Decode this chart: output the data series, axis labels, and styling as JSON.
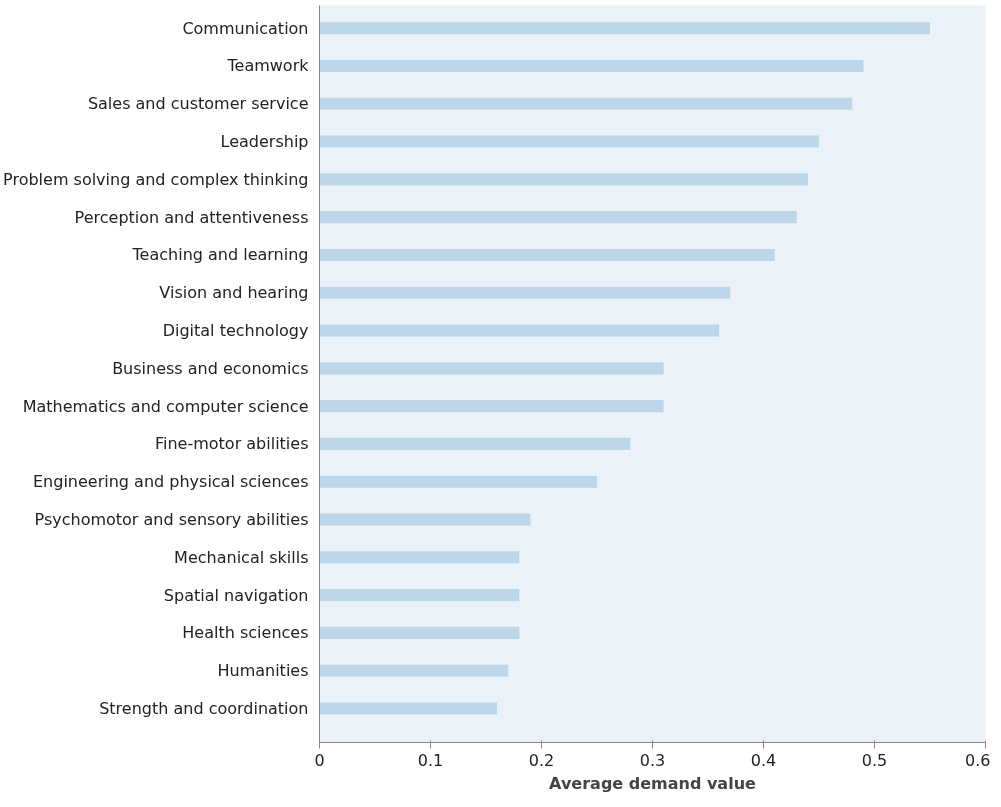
{
  "chart_data": {
    "type": "bar",
    "orientation": "horizontal",
    "xlabel": "Average demand value",
    "categories": [
      "Communication",
      "Teamwork",
      "Sales and customer service",
      "Leadership",
      "Problem solving and complex thinking",
      "Perception and attentiveness",
      "Teaching and learning",
      "Vision and hearing",
      "Digital technology",
      "Business and economics",
      "Mathematics and computer science",
      "Fine-motor abilities",
      "Engineering and physical sciences",
      "Psychomotor and sensory abilities",
      "Mechanical skills",
      "Spatial navigation",
      "Health sciences",
      "Humanities",
      "Strength and coordination"
    ],
    "values": [
      0.55,
      0.49,
      0.48,
      0.45,
      0.44,
      0.43,
      0.41,
      0.37,
      0.36,
      0.31,
      0.31,
      0.28,
      0.25,
      0.19,
      0.18,
      0.18,
      0.18,
      0.17,
      0.16
    ],
    "color": "#bcd6ea",
    "xlim": [
      0,
      0.6
    ],
    "xticks": [
      0,
      0.1,
      0.2,
      0.3,
      0.4,
      0.5,
      0.6
    ],
    "grid": false
  }
}
